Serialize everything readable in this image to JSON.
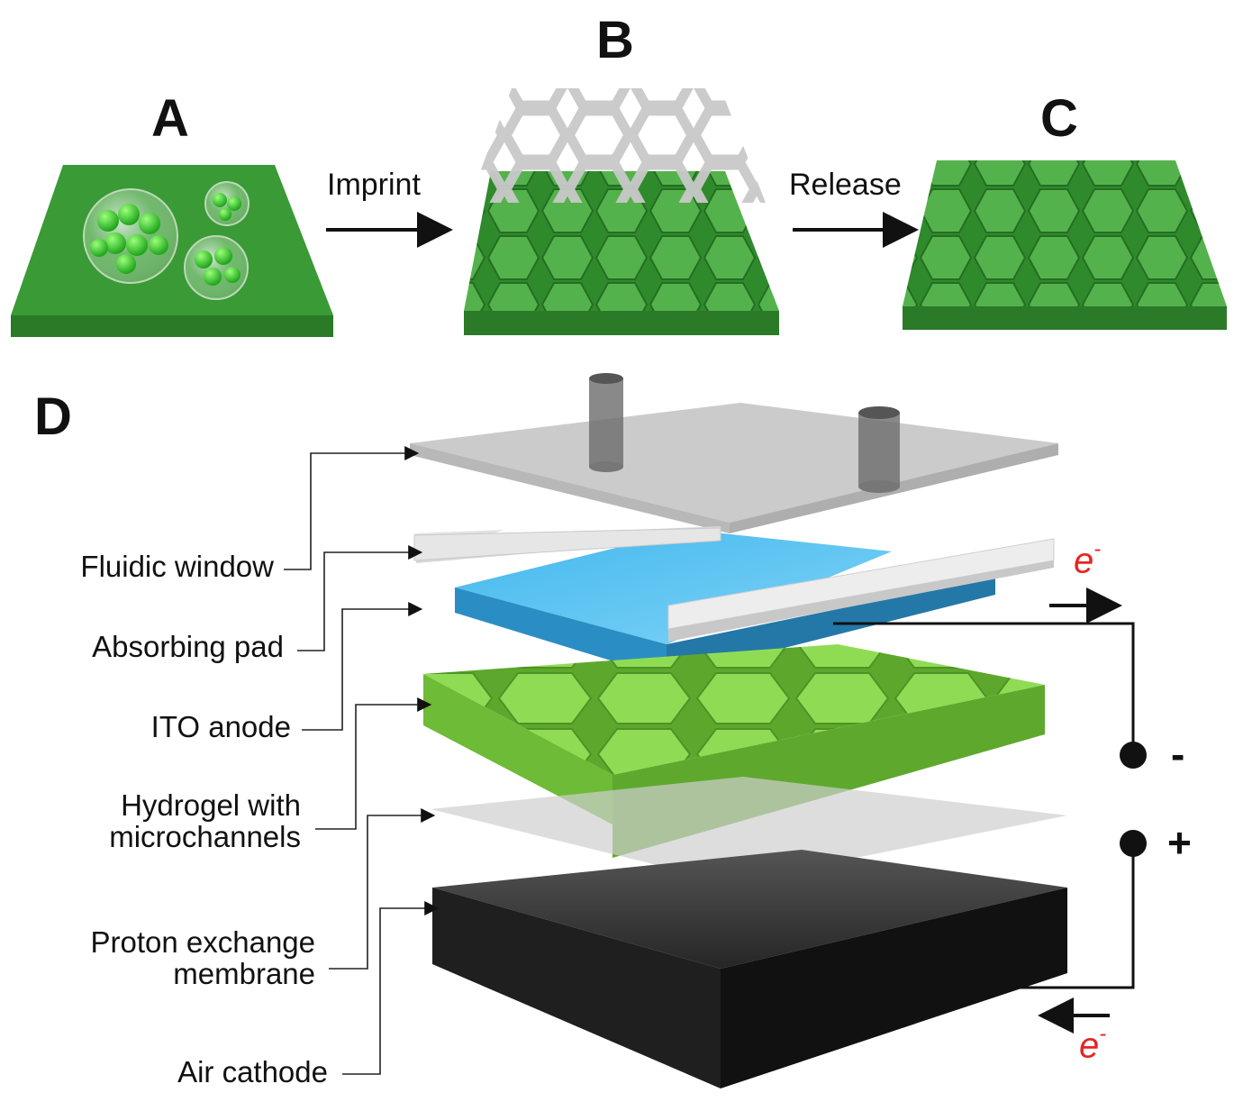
{
  "panels": {
    "a": "A",
    "b": "B",
    "c": "C",
    "d": "D"
  },
  "arrows": {
    "imprint": "Imprint",
    "release": "Release"
  },
  "layers": {
    "fluidic_window": "Fluidic window",
    "absorbing_pad": "Absorbing pad",
    "ito_anode": "ITO anode",
    "hydrogel_line1": "Hydrogel with",
    "hydrogel_line2": "microchannels",
    "pem_line1": "Proton exchange",
    "pem_line2": "membrane",
    "air_cathode": "Air cathode"
  },
  "circuit": {
    "electron_symbol": "e",
    "electron_charge": "-",
    "negative_terminal": "-",
    "positive_terminal": "+"
  },
  "colors": {
    "hydrogel_green": "#3f9e3a",
    "hydrogel_light": "#86d64a",
    "absorbing_pad_blue": "#2fa5dc",
    "electron_red": "#e8231f",
    "cathode_black": "#2a2a2a",
    "mold_gray": "#c4c4c4"
  }
}
